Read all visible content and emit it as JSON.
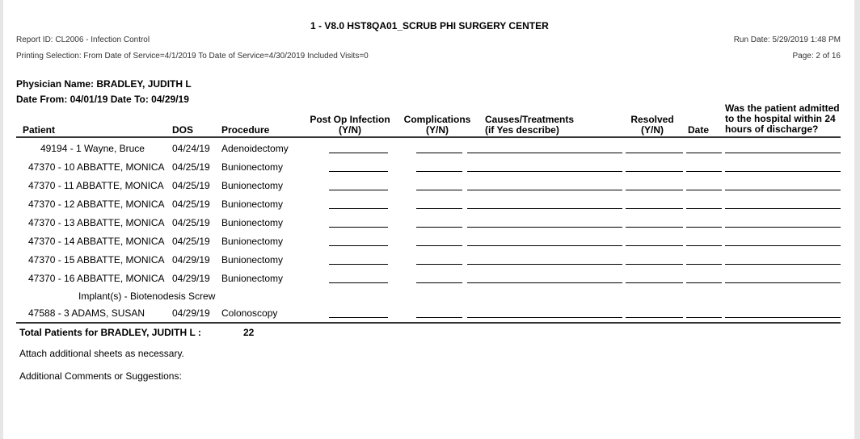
{
  "report": {
    "title": "1 - V8.0 HST8QA01_SCRUB PHI SURGERY CENTER",
    "report_id": "Report ID: CL2006 - Infection Control",
    "printing_selection": "Printing Selection: From Date of Service=4/1/2019 To Date of Service=4/30/2019 Included Visits=0",
    "run_date": "Run Date: 5/29/2019 1:48 PM",
    "page": "Page: 2 of 16",
    "physician": "Physician Name: BRADLEY, JUDITH L",
    "date_range": "Date From: 04/01/19 Date To: 04/29/19"
  },
  "columns": {
    "patient": "Patient",
    "dos": "DOS",
    "procedure": "Procedure",
    "post_op_1": "Post Op Infection",
    "post_op_2": "(Y/N)",
    "comp_1": "Complications",
    "comp_2": "(Y/N)",
    "causes_1": "Causes/Treatments",
    "causes_2": "(if Yes describe)",
    "resolved_1": "Resolved",
    "resolved_2": "(Y/N)",
    "date": "Date",
    "admitted_1": "Was the patient admitted",
    "admitted_2": "to the hospital within 24",
    "admitted_3": "hours of discharge?"
  },
  "rows": [
    {
      "patient": "49194 - 1 Wayne, Bruce",
      "dos": "04/24/19",
      "procedure": "Adenoidectomy"
    },
    {
      "patient": "47370 - 10 ABBATTE, MONICA",
      "dos": "04/25/19",
      "procedure": "Bunionectomy"
    },
    {
      "patient": "47370 - 11 ABBATTE, MONICA",
      "dos": "04/25/19",
      "procedure": "Bunionectomy"
    },
    {
      "patient": "47370 - 12 ABBATTE, MONICA",
      "dos": "04/25/19",
      "procedure": "Bunionectomy"
    },
    {
      "patient": "47370 - 13 ABBATTE, MONICA",
      "dos": "04/25/19",
      "procedure": "Bunionectomy"
    },
    {
      "patient": "47370 - 14 ABBATTE, MONICA",
      "dos": "04/25/19",
      "procedure": "Bunionectomy"
    },
    {
      "patient": "47370 - 15 ABBATTE, MONICA",
      "dos": "04/29/19",
      "procedure": "Bunionectomy"
    },
    {
      "patient": "47370 - 16 ABBATTE, MONICA",
      "dos": "04/29/19",
      "procedure": "Bunionectomy"
    },
    {
      "note": "Implant(s) - Biotenodesis Screw",
      "patient": "47588 - 3 ADAMS, SUSAN",
      "dos": "04/29/19",
      "procedure": "Colonoscopy"
    }
  ],
  "footer": {
    "total_label": "Total Patients for BRADLEY, JUDITH L :",
    "total_value": "22",
    "attach": "Attach additional sheets as necessary.",
    "comments": "Additional Comments or Suggestions:"
  }
}
